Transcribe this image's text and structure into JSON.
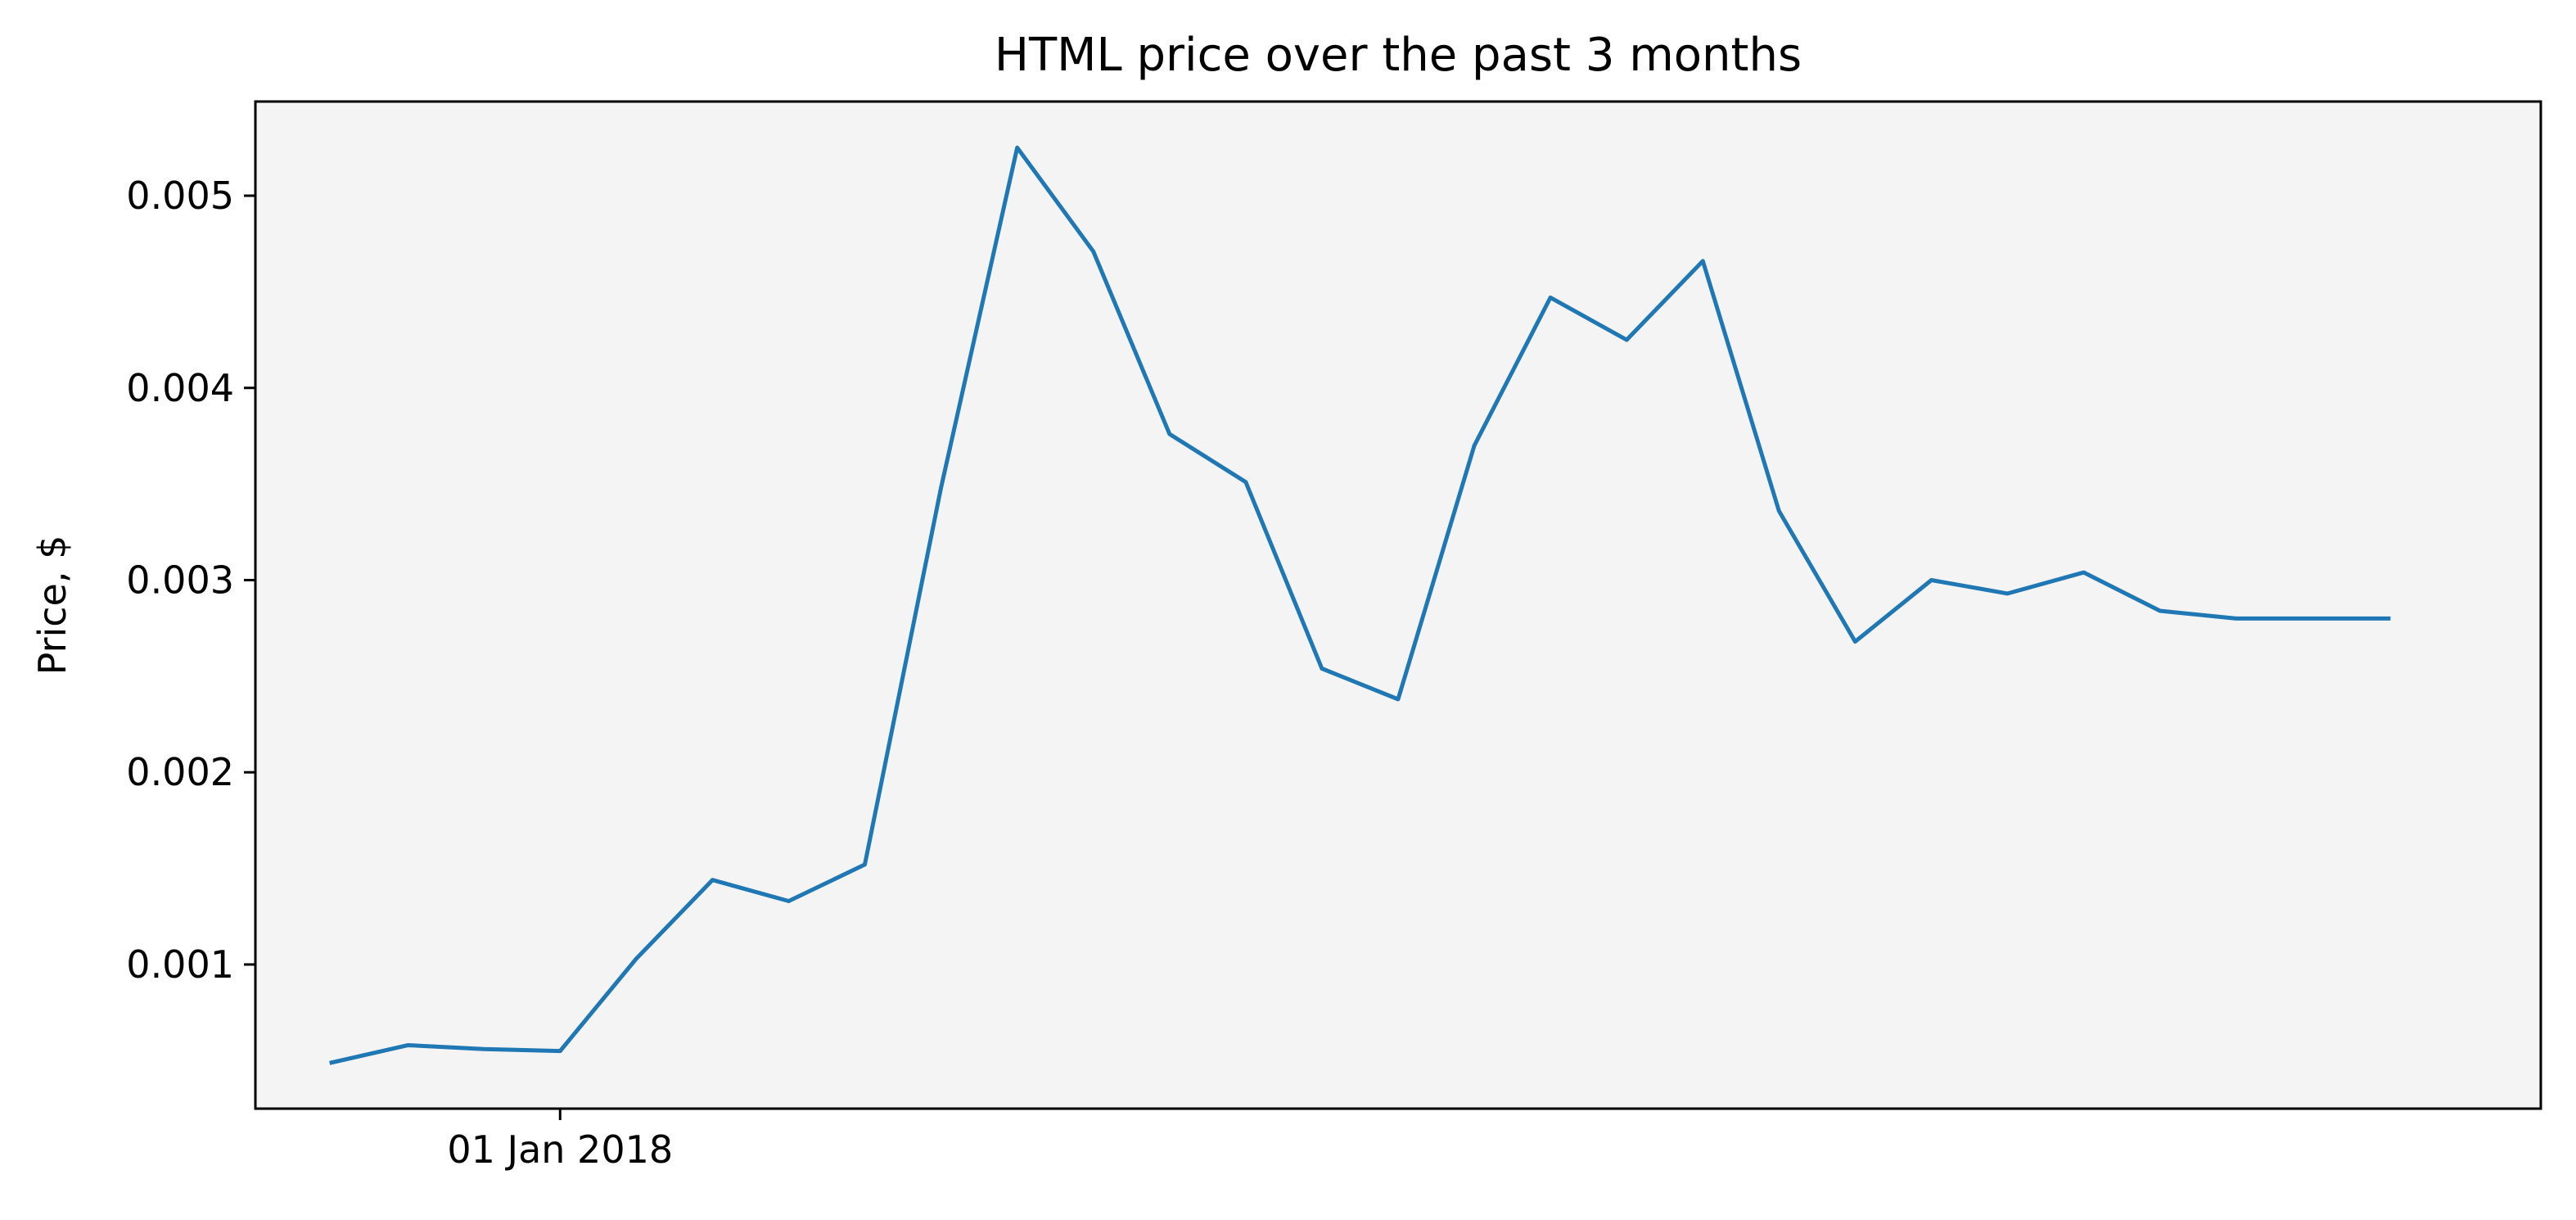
{
  "chart_data": {
    "type": "line",
    "title": "HTML price over the past 3 months",
    "xlabel": "",
    "ylabel": "Price, $",
    "x_tick_labels": [
      {
        "date": "2018-01-01",
        "label": "01 Jan 2018"
      }
    ],
    "y_tick_labels": [
      "0.001",
      "0.002",
      "0.003",
      "0.004",
      "0.005"
    ],
    "y_ticks": [
      0.001,
      0.002,
      0.003,
      0.004,
      0.005
    ],
    "xlim": [
      "2017-12-20",
      "2018-03-20"
    ],
    "ylim": [
      0.00025,
      0.00549
    ],
    "grid": false,
    "legend": "none",
    "colors": {
      "line": "#1f77b4",
      "plot_background": "#f4f4f4",
      "axes": "#000000"
    },
    "series": [
      {
        "x": [
          "2017-12-23",
          "2017-12-26",
          "2017-12-29",
          "2018-01-01",
          "2018-01-04",
          "2018-01-07",
          "2018-01-10",
          "2018-01-13",
          "2018-01-16",
          "2018-01-19",
          "2018-01-22",
          "2018-01-25",
          "2018-01-28",
          "2018-01-31",
          "2018-02-03",
          "2018-02-06",
          "2018-02-09",
          "2018-02-12",
          "2018-02-15",
          "2018-02-18",
          "2018-02-21",
          "2018-02-24",
          "2018-02-27",
          "2018-03-02",
          "2018-03-05",
          "2018-03-08",
          "2018-03-11",
          "2018-03-14"
        ],
        "values": [
          0.00049,
          0.00058,
          0.00056,
          0.00055,
          0.00103,
          0.00144,
          0.00133,
          0.00152,
          0.00348,
          0.00525,
          0.00471,
          0.00376,
          0.00351,
          0.00254,
          0.00238,
          0.0037,
          0.00447,
          0.00425,
          0.00466,
          0.00336,
          0.00268,
          0.003,
          0.00293,
          0.00304,
          0.00284,
          0.0028,
          0.0028,
          0.0028
        ]
      }
    ]
  }
}
